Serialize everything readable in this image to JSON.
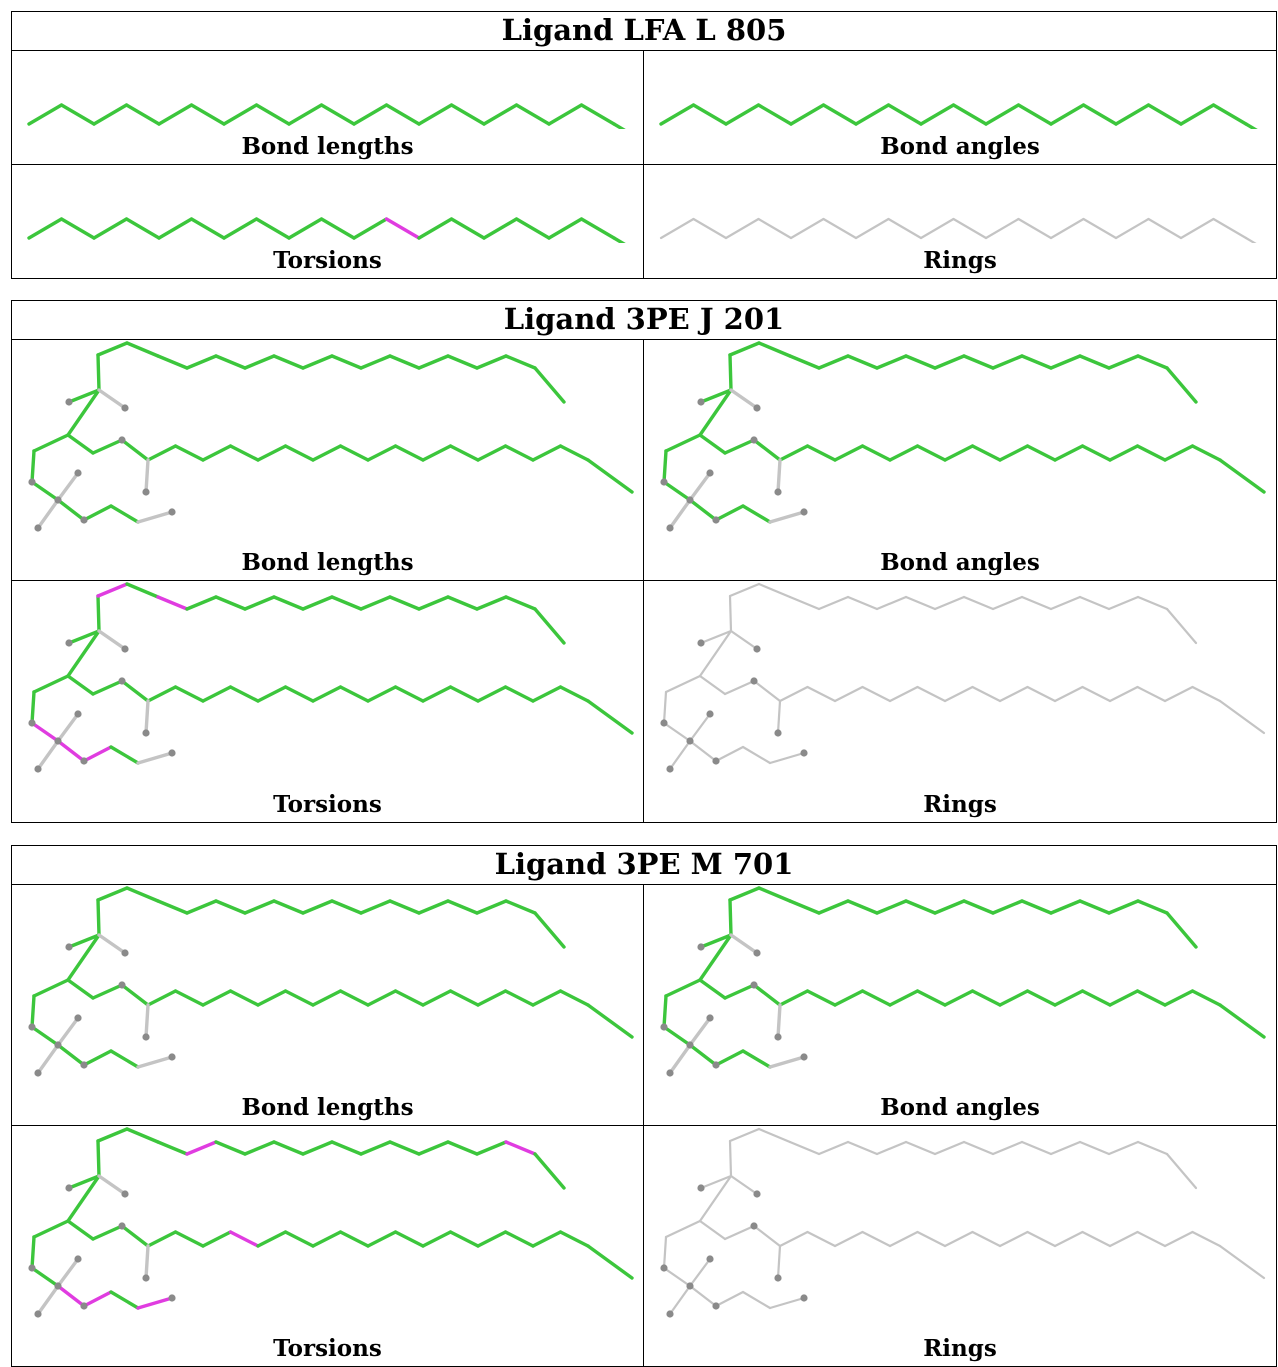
{
  "colors": {
    "pass": "#3cc63c",
    "outlier": "#e03ce0",
    "not_assessed": "#c4c4c4",
    "atom_marker": "#8a8a8a"
  },
  "ligands": [
    {
      "title": "Ligand LFA L 805",
      "molecule": "chain",
      "panels": [
        {
          "label": "Bond lengths",
          "status": "pass"
        },
        {
          "label": "Bond angles",
          "status": "pass"
        },
        {
          "label": "Torsions",
          "status": "mixed",
          "outlier_bonds": [
            11
          ]
        },
        {
          "label": "Rings",
          "status": "not_assessed"
        }
      ]
    },
    {
      "title": "Ligand 3PE J 201",
      "molecule": "lipid",
      "panels": [
        {
          "label": "Bond lengths",
          "status": "pass"
        },
        {
          "label": "Bond angles",
          "status": "pass"
        },
        {
          "label": "Torsions",
          "status": "mixed",
          "outlier_bonds": [
            "a1",
            "a3",
            "b1",
            "b2",
            "b3"
          ]
        },
        {
          "label": "Rings",
          "status": "not_assessed"
        }
      ]
    },
    {
      "title": "Ligand 3PE M 701",
      "molecule": "lipid",
      "panels": [
        {
          "label": "Bond lengths",
          "status": "pass"
        },
        {
          "label": "Bond angles",
          "status": "pass"
        },
        {
          "label": "Torsions",
          "status": "mixed",
          "outlier_bonds": [
            "a4",
            "a15",
            "c4",
            "b2",
            "b3",
            "h2"
          ]
        },
        {
          "label": "Rings",
          "status": "not_assessed"
        }
      ]
    }
  ]
}
